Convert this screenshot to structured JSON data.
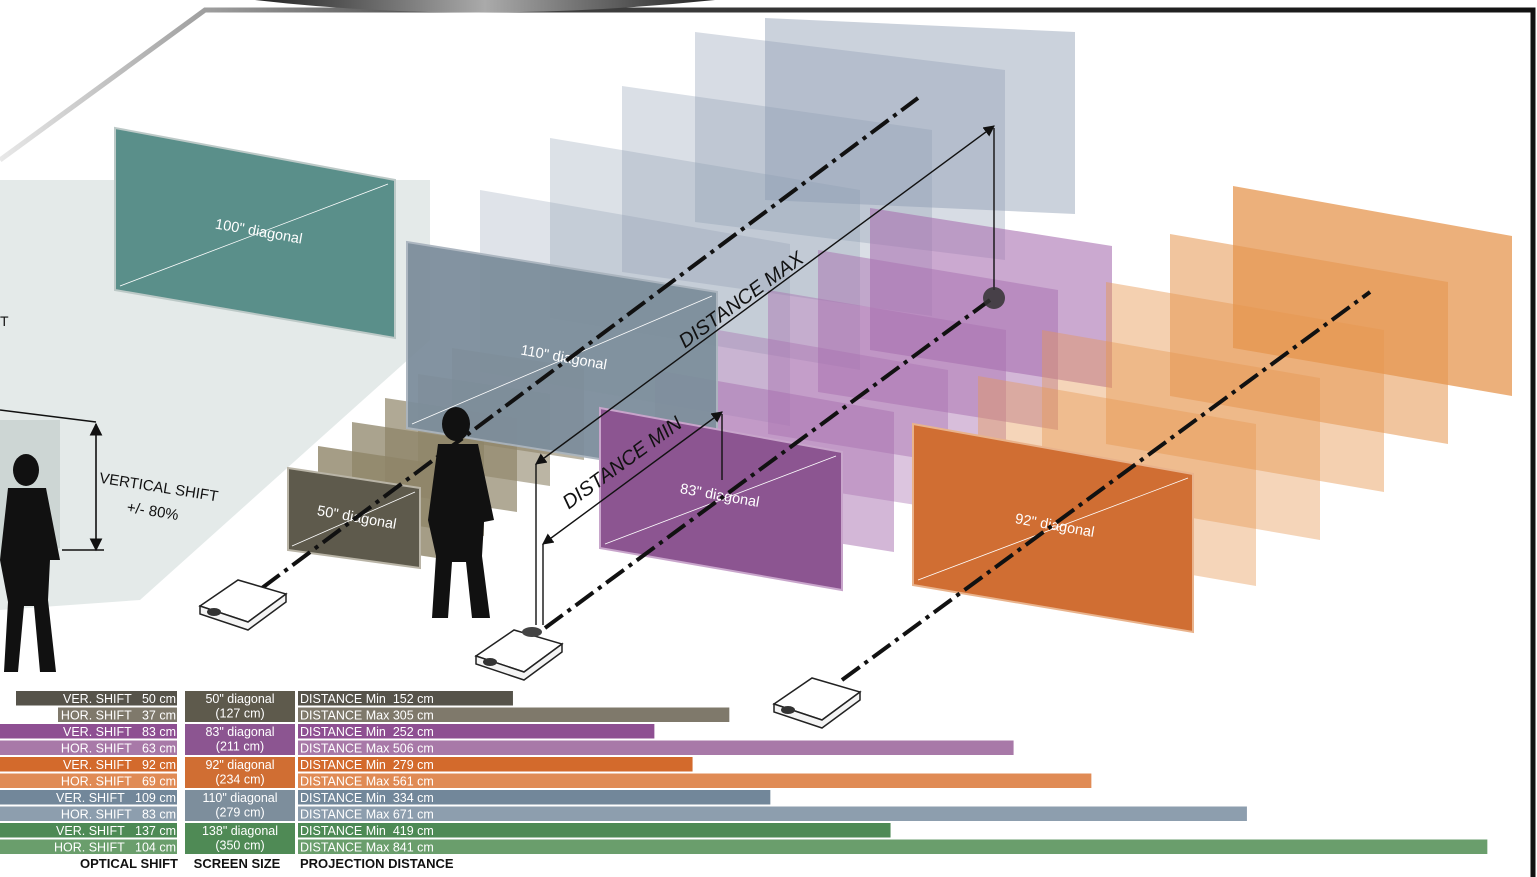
{
  "diagram": {
    "labels": {
      "distance_max": "DISTANCE MAX",
      "distance_min": "DISTANCE MIN",
      "vertical_shift": "VERTICAL SHIFT",
      "vertical_shift_value": "+/- 80%",
      "left_edge_letter": "T"
    },
    "screens": [
      {
        "label": "100\" diagonal",
        "color": "#5a8f8a"
      },
      {
        "label": "110\" diagonal",
        "color": "#7d8e9c"
      },
      {
        "label": "50\" diagonal",
        "color": "#5e5a4c"
      },
      {
        "label": "83\" diagonal",
        "color": "#8c5591"
      },
      {
        "label": "92\" diagonal",
        "color": "#d06e33"
      }
    ]
  },
  "table": {
    "headers": {
      "optical_shift": "OPTICAL SHIFT",
      "screen_size": "SCREEN SIZE",
      "projection_distance": "PROJECTION DISTANCE"
    },
    "groups": [
      {
        "size_line1": "50\" diagonal",
        "size_line2": "(127 cm)",
        "ver_shift": "VER. SHIFT   50 cm",
        "hor_shift": "HOR. SHIFT   37 cm",
        "dist_min_label": "DISTANCE Min  152 cm",
        "dist_max_label": "DISTANCE Max 305 cm",
        "dist_min": 152,
        "dist_max": 305,
        "colors": {
          "dark": "#56534a",
          "light": "#7f796b",
          "cell": "#5e5a4c"
        }
      },
      {
        "size_line1": "83\" diagonal",
        "size_line2": "(211 cm)",
        "ver_shift": "VER. SHIFT   83 cm",
        "hor_shift": "HOR. SHIFT   63 cm",
        "dist_min_label": "DISTANCE Min  252 cm",
        "dist_max_label": "DISTANCE Max 506 cm",
        "dist_min": 252,
        "dist_max": 506,
        "colors": {
          "dark": "#8e4f92",
          "light": "#a879a8",
          "cell": "#8c5591"
        }
      },
      {
        "size_line1": "92\" diagonal",
        "size_line2": "(234 cm)",
        "ver_shift": "VER. SHIFT   92 cm",
        "hor_shift": "HOR. SHIFT   69 cm",
        "dist_min_label": "DISTANCE Min  279 cm",
        "dist_max_label": "DISTANCE Max 561 cm",
        "dist_min": 279,
        "dist_max": 561,
        "colors": {
          "dark": "#d36a2c",
          "light": "#e08b55",
          "cell": "#d06e33"
        }
      },
      {
        "size_line1": "110\" diagonal",
        "size_line2": "(279 cm)",
        "ver_shift": "VER. SHIFT   109 cm",
        "hor_shift": "HOR. SHIFT   83 cm",
        "dist_min_label": "DISTANCE Min  334 cm",
        "dist_max_label": "DISTANCE Max 671 cm",
        "dist_min": 334,
        "dist_max": 671,
        "colors": {
          "dark": "#72879a",
          "light": "#8d9eae",
          "cell": "#7d8e9c"
        }
      },
      {
        "size_line1": "138\" diagonal",
        "size_line2": "(350 cm)",
        "ver_shift": "VER. SHIFT   137 cm",
        "hor_shift": "HOR. SHIFT   104 cm",
        "dist_min_label": "DISTANCE Min  419 cm",
        "dist_max_label": "DISTANCE Max 841 cm",
        "dist_min": 419,
        "dist_max": 841,
        "colors": {
          "dark": "#4d8a55",
          "light": "#6a9e6c",
          "cell": "#4f8a55"
        }
      }
    ]
  }
}
